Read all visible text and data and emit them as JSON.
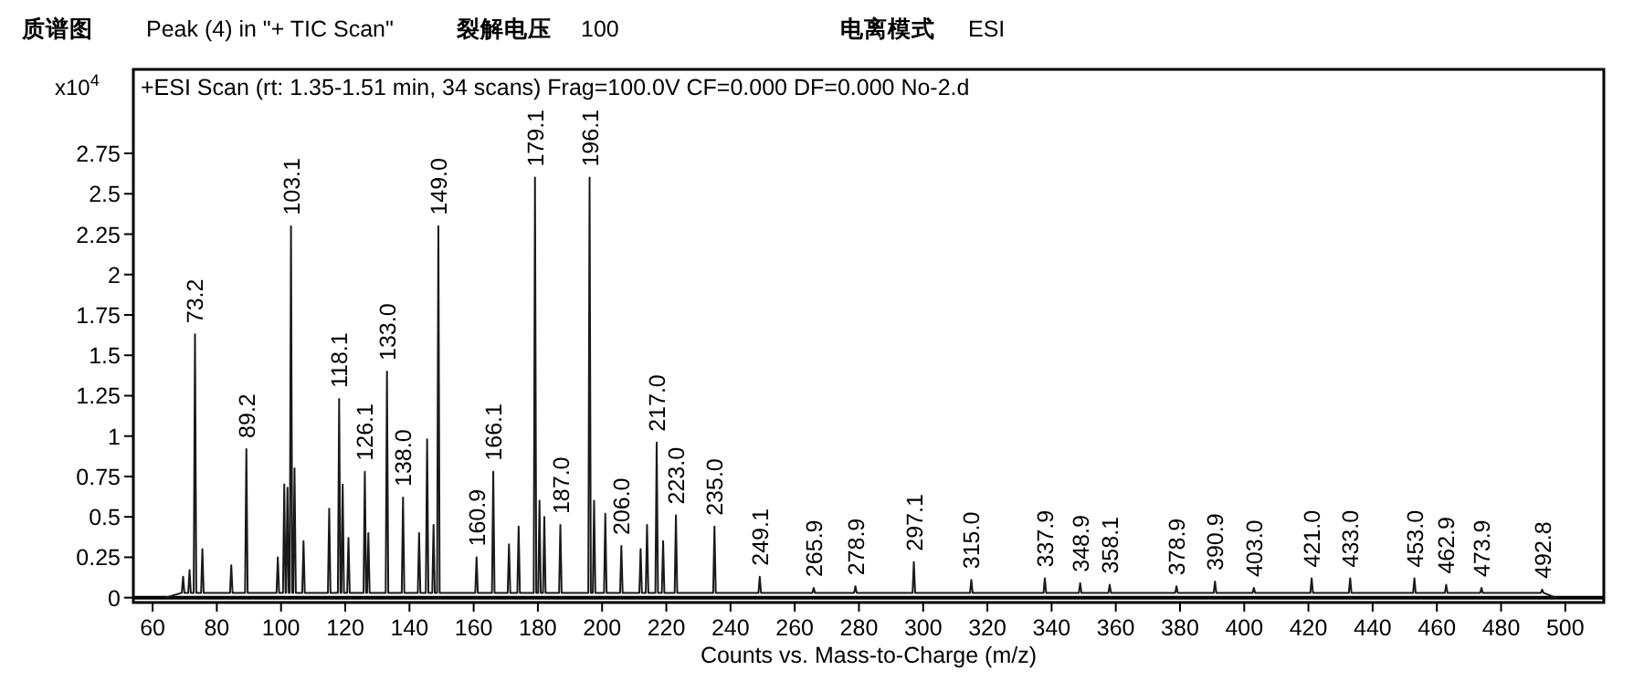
{
  "chart_data": {
    "type": "line",
    "title": "+ESI Scan (rt: 1.35-1.51 min, 34 scans) Frag=100.0V CF=0.000 DF=0.000 No-2.d",
    "xlabel": "Counts vs. Mass-to-Charge (m/z)",
    "ylabel": "x10$^{4}$",
    "color": "#1a1a1a",
    "line_style": "solid",
    "marker": "none",
    "xlim": [
      54,
      512
    ],
    "ylim": [
      -0.03,
      3.27
    ],
    "xticks": [
      60,
      80,
      100,
      120,
      140,
      160,
      180,
      200,
      220,
      240,
      260,
      280,
      300,
      320,
      340,
      360,
      380,
      400,
      420,
      440,
      460,
      480,
      500
    ],
    "yticks": [
      0,
      0.25,
      0.5,
      0.75,
      1,
      1.25,
      1.5,
      1.75,
      2,
      2.25,
      2.5,
      2.75
    ],
    "x": [
      64,
      69.1,
      69.5,
      69.9,
      71.1,
      71.5,
      71.9,
      72.8,
      73.2,
      73.6,
      75.1,
      75.5,
      75.9,
      84.1,
      84.5,
      84.9,
      88.8,
      89.2,
      89.6,
      98.6,
      99,
      99.4,
      100.6,
      101,
      101.4,
      101.6,
      102,
      102.4,
      102.7,
      103.1,
      103.5,
      103.8,
      104.2,
      104.6,
      106.6,
      107,
      107.4,
      114.6,
      115,
      115.4,
      117.7,
      118.1,
      118.5,
      118.8,
      119.2,
      119.6,
      120.6,
      121,
      121.4,
      125.7,
      126.1,
      126.5,
      126.8,
      127.2,
      127.6,
      132.6,
      133,
      133.4,
      137.6,
      138,
      138.4,
      142.6,
      143,
      143.4,
      145.1,
      145.5,
      145.9,
      147.1,
      147.5,
      147.9,
      148.6,
      149,
      149.4,
      160.5,
      160.9,
      161.3,
      165.7,
      166.1,
      166.5,
      170.6,
      171,
      171.4,
      173.6,
      174,
      174.4,
      178.7,
      179.1,
      179.5,
      180.1,
      180.5,
      180.9,
      181.6,
      182,
      182.4,
      186.6,
      187,
      187.4,
      195.7,
      196.1,
      196.5,
      197.1,
      197.5,
      197.9,
      200.6,
      201,
      201.4,
      205.6,
      206,
      206.4,
      211.6,
      212,
      212.4,
      213.6,
      214,
      214.4,
      216.6,
      217,
      217.4,
      218.6,
      219,
      219.4,
      222.6,
      223,
      223.4,
      234.6,
      235,
      235.4,
      248.7,
      249.1,
      249.5,
      265.5,
      265.9,
      266.3,
      278.5,
      278.9,
      279.3,
      296.7,
      297.1,
      297.5,
      314.6,
      315,
      315.4,
      337.5,
      337.9,
      338.3,
      348.5,
      348.9,
      349.3,
      357.7,
      358.1,
      358.5,
      378.5,
      378.9,
      379.3,
      390.5,
      390.9,
      391.3,
      402.6,
      403,
      403.4,
      420.6,
      421,
      421.4,
      432.6,
      433,
      433.4,
      452.6,
      453,
      453.4,
      462.5,
      462.9,
      463.3,
      473.5,
      473.9,
      474.3,
      492.4,
      492.8,
      493.2,
      497
    ],
    "values": [
      0,
      0.03,
      0.13,
      0.03,
      0.03,
      0.17,
      0.03,
      0.03,
      1.63,
      0.03,
      0.03,
      0.3,
      0.03,
      0.03,
      0.2,
      0.03,
      0.03,
      0.92,
      0.03,
      0.03,
      0.25,
      0.03,
      0.03,
      0.7,
      0.03,
      0.03,
      0.68,
      0.03,
      0.03,
      2.3,
      0.03,
      0.03,
      0.8,
      0.03,
      0.03,
      0.35,
      0.03,
      0.03,
      0.55,
      0.03,
      0.03,
      1.23,
      0.03,
      0.03,
      0.7,
      0.03,
      0.03,
      0.37,
      0.03,
      0.03,
      0.78,
      0.03,
      0.03,
      0.4,
      0.03,
      0.03,
      1.4,
      0.03,
      0.03,
      0.62,
      0.03,
      0.03,
      0.4,
      0.03,
      0.03,
      0.98,
      0.03,
      0.03,
      0.45,
      0.03,
      0.03,
      2.3,
      0.03,
      0.03,
      0.25,
      0.03,
      0.03,
      0.78,
      0.03,
      0.03,
      0.33,
      0.03,
      0.03,
      0.44,
      0.03,
      0.03,
      2.6,
      0.03,
      0.03,
      0.6,
      0.03,
      0.03,
      0.5,
      0.03,
      0.03,
      0.45,
      0.03,
      0.03,
      2.6,
      0.03,
      0.03,
      0.6,
      0.03,
      0.03,
      0.52,
      0.03,
      0.03,
      0.32,
      0.03,
      0.03,
      0.3,
      0.03,
      0.03,
      0.45,
      0.03,
      0.03,
      0.96,
      0.03,
      0.03,
      0.35,
      0.03,
      0.03,
      0.51,
      0.03,
      0.03,
      0.44,
      0.03,
      0.03,
      0.13,
      0.03,
      0.03,
      0.06,
      0.03,
      0.03,
      0.07,
      0.03,
      0.03,
      0.22,
      0.03,
      0.03,
      0.11,
      0.03,
      0.03,
      0.12,
      0.03,
      0.03,
      0.09,
      0.03,
      0.03,
      0.08,
      0.03,
      0.03,
      0.07,
      0.03,
      0.03,
      0.1,
      0.03,
      0.03,
      0.06,
      0.03,
      0.03,
      0.12,
      0.03,
      0.03,
      0.12,
      0.03,
      0.03,
      0.12,
      0.03,
      0.03,
      0.08,
      0.03,
      0.03,
      0.06,
      0.03,
      0.03,
      0.05,
      0.03,
      0
    ],
    "annotations": [
      "质谱图",
      "Peak (4) in \"+ TIC Scan\"",
      "裂解电压",
      "100",
      "电离模式",
      "ESI",
      {
        "text": "73.2",
        "x": 73.2,
        "y": 1.63
      },
      {
        "text": "89.2",
        "x": 89.2,
        "y": 0.92
      },
      {
        "text": "103.1",
        "x": 103.1,
        "y": 2.3
      },
      {
        "text": "118.1",
        "x": 118.1,
        "y": 1.23
      },
      {
        "text": "126.1",
        "x": 126.1,
        "y": 0.78
      },
      {
        "text": "133.0",
        "x": 133,
        "y": 1.4
      },
      {
        "text": "138.0",
        "x": 138,
        "y": 0.62
      },
      {
        "text": "149.0",
        "x": 149,
        "y": 2.3
      },
      {
        "text": "160.9",
        "x": 160.9,
        "y": 0.25
      },
      {
        "text": "166.1",
        "x": 166.1,
        "y": 0.78
      },
      {
        "text": "179.1",
        "x": 179.1,
        "y": 2.6
      },
      {
        "text": "187.0",
        "x": 187,
        "y": 0.45
      },
      {
        "text": "196.1",
        "x": 196.1,
        "y": 2.6
      },
      {
        "text": "206.0",
        "x": 206,
        "y": 0.32
      },
      {
        "text": "217.0",
        "x": 217,
        "y": 0.96
      },
      {
        "text": "223.0",
        "x": 223,
        "y": 0.51
      },
      {
        "text": "235.0",
        "x": 235,
        "y": 0.44
      },
      {
        "text": "249.1",
        "x": 249.1,
        "y": 0.13
      },
      {
        "text": "265.9",
        "x": 265.9,
        "y": 0.06
      },
      {
        "text": "278.9",
        "x": 278.9,
        "y": 0.07
      },
      {
        "text": "297.1",
        "x": 297.1,
        "y": 0.22
      },
      {
        "text": "315.0",
        "x": 315,
        "y": 0.11
      },
      {
        "text": "337.9",
        "x": 337.9,
        "y": 0.12
      },
      {
        "text": "348.9",
        "x": 348.9,
        "y": 0.09
      },
      {
        "text": "358.1",
        "x": 358.1,
        "y": 0.08
      },
      {
        "text": "378.9",
        "x": 378.9,
        "y": 0.07
      },
      {
        "text": "390.9",
        "x": 390.9,
        "y": 0.1
      },
      {
        "text": "403.0",
        "x": 403,
        "y": 0.06
      },
      {
        "text": "421.0",
        "x": 421,
        "y": 0.12
      },
      {
        "text": "433.0",
        "x": 433,
        "y": 0.12
      },
      {
        "text": "453.0",
        "x": 453,
        "y": 0.12
      },
      {
        "text": "462.9",
        "x": 462.9,
        "y": 0.08
      },
      {
        "text": "473.9",
        "x": 473.9,
        "y": 0.06
      },
      {
        "text": "492.8",
        "x": 492.8,
        "y": 0.05
      }
    ]
  }
}
